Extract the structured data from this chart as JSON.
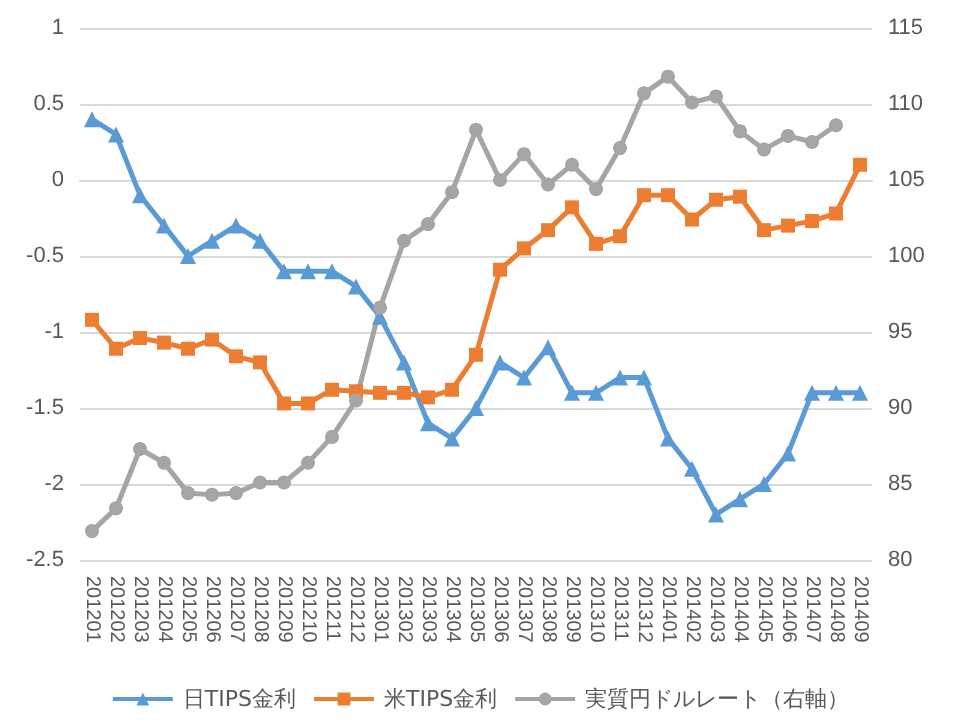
{
  "chart_data": {
    "type": "line",
    "categories": [
      "201201",
      "201202",
      "201203",
      "201204",
      "201205",
      "201206",
      "201207",
      "201208",
      "201209",
      "201210",
      "201211",
      "201212",
      "201301",
      "201302",
      "201303",
      "201304",
      "201305",
      "201306",
      "201307",
      "201308",
      "201309",
      "201310",
      "201311",
      "201312",
      "201401",
      "201402",
      "201403",
      "201404",
      "201405",
      "201406",
      "201407",
      "201408",
      "201409"
    ],
    "series": [
      {
        "name": "日TIPS金利",
        "color": "#5b9bd5",
        "marker": "triangle",
        "values": [
          0.4,
          0.3,
          -0.1,
          -0.3,
          -0.5,
          -0.4,
          -0.3,
          -0.4,
          -0.6,
          -0.6,
          -0.6,
          -0.7,
          -0.9,
          -1.2,
          -1.6,
          -1.7,
          -1.5,
          -1.2,
          -1.3,
          -1.1,
          -1.4,
          -1.4,
          -1.3,
          -1.3,
          -1.7,
          -1.9,
          -2.2,
          -2.1,
          -2.0,
          -1.8,
          -1.4,
          -1.4,
          -1.4
        ]
      },
      {
        "name": "米TIPS金利",
        "color": "#ed7d31",
        "marker": "square",
        "values": [
          -0.92,
          -1.11,
          -1.04,
          -1.07,
          -1.11,
          -1.05,
          -1.16,
          -1.2,
          -1.47,
          -1.47,
          -1.38,
          -1.39,
          -1.4,
          -1.4,
          -1.43,
          -1.38,
          -1.15,
          -0.59,
          -0.45,
          -0.33,
          -0.18,
          -0.42,
          -0.37,
          -0.1,
          -0.1,
          -0.26,
          -0.13,
          -0.11,
          -0.33,
          -0.3,
          -0.27,
          -0.22,
          0.1
        ]
      },
      {
        "name": "実質円ドルレート（右軸）",
        "color": "#a5a5a5",
        "marker": "circle",
        "axis": "y2",
        "values": [
          81.9,
          83.4,
          87.3,
          86.4,
          84.4,
          84.3,
          84.4,
          85.1,
          85.1,
          86.4,
          88.1,
          90.5,
          96.6,
          101.0,
          102.1,
          104.2,
          108.3,
          105.0,
          106.7,
          104.7,
          106.0,
          104.4,
          107.1,
          110.7,
          111.8,
          110.1,
          110.5,
          108.2,
          107.0,
          107.9,
          107.5,
          108.6,
          null
        ]
      }
    ],
    "ylim": [
      -2.5,
      1
    ],
    "yticks": [
      -2.5,
      -2,
      -1.5,
      -1,
      -0.5,
      0,
      0.5,
      1
    ],
    "y2lim": [
      80,
      115
    ],
    "y2ticks": [
      80,
      85,
      90,
      95,
      100,
      105,
      110,
      115
    ],
    "grid": "y",
    "legend": "bottom"
  }
}
